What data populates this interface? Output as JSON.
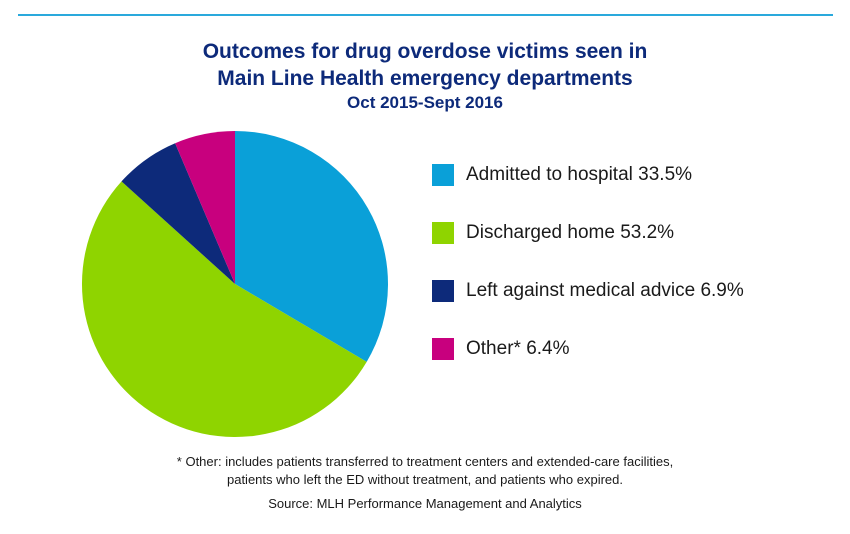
{
  "chart_data": {
    "type": "pie",
    "title": "Outcomes for drug overdose victims seen in",
    "title_line2": "Main Line Health emergency departments",
    "subtitle": "Oct 2015-Sept 2016",
    "categories": [
      "Admitted to hospital",
      "Discharged home",
      "Left against medical advice",
      "Other*"
    ],
    "values": [
      33.5,
      53.2,
      6.9,
      6.4
    ],
    "colors": [
      "#0aa0d8",
      "#8fd400",
      "#0d2a7a",
      "#c8007e"
    ],
    "legend_labels": [
      "Admitted to hospital 33.5%",
      "Discharged home 53.2%",
      "Left against medical advice 6.9%",
      "Other* 6.4%"
    ],
    "legend_position": "right"
  },
  "footnote": {
    "line1": "* Other: includes patients transferred to treatment centers and extended-care facilities,",
    "line2": "patients who left the ED without treatment, and patients who expired."
  },
  "source": "Source: MLH Performance Management and Analytics",
  "accent_color": "#2aa9dc",
  "title_color": "#0d2a7a"
}
